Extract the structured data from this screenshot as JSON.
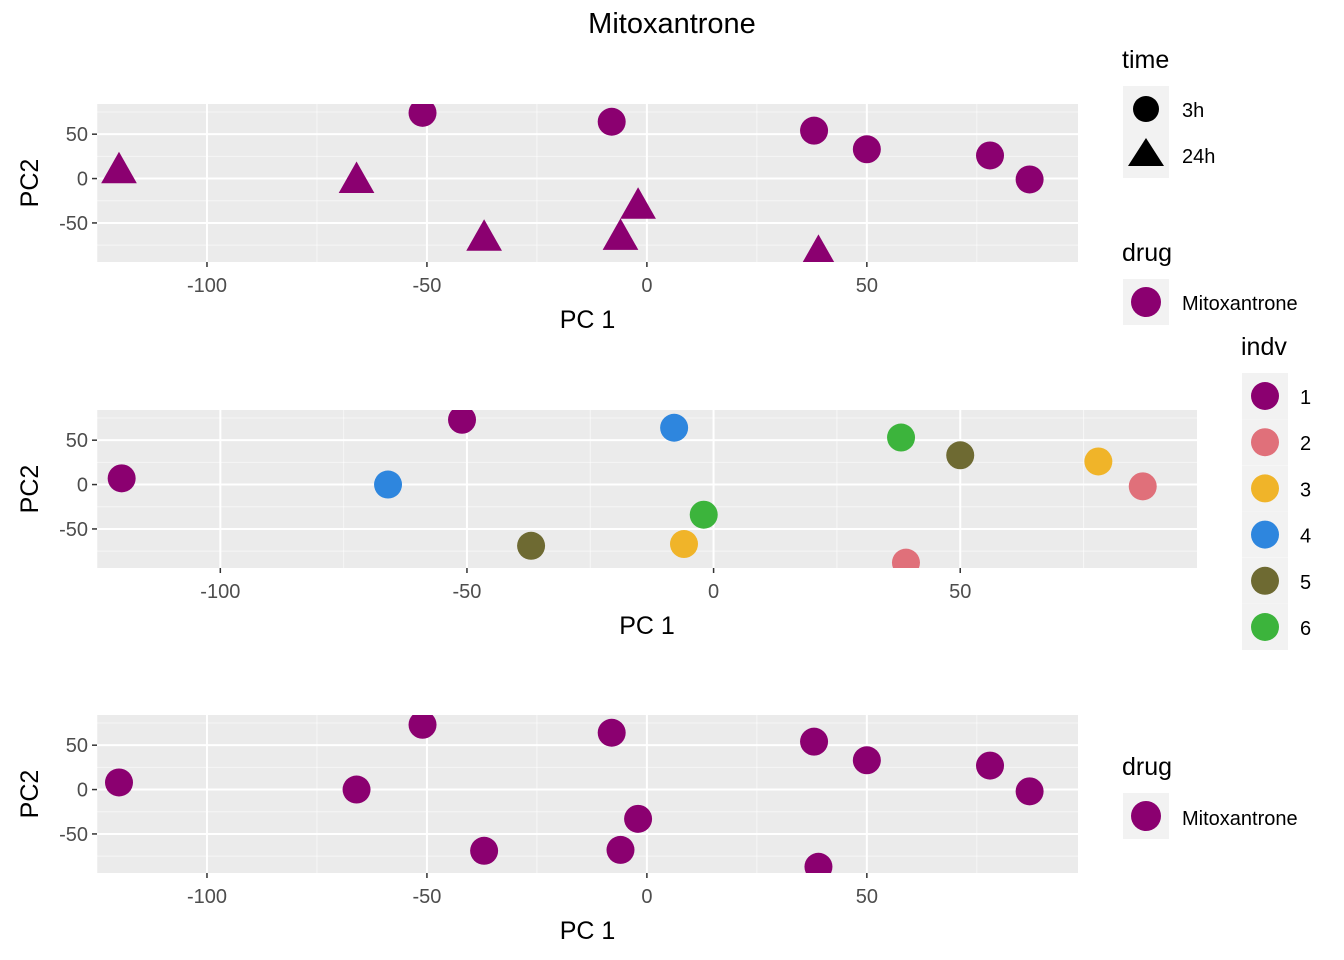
{
  "title": "Mitoxantrone",
  "colors": {
    "panel_bg": "#EBEBEB",
    "grid_major": "#FFFFFF",
    "grid_minor": "#F5F5F5",
    "tick_text": "#4D4D4D",
    "mitoxantrone": "#8B0070",
    "indv": {
      "1": "#8B0070",
      "2": "#E0707A",
      "3": "#F0B429",
      "4": "#2E86DE",
      "5": "#6E6A32",
      "6": "#3CB43C"
    }
  },
  "legends": {
    "time": {
      "title": "time",
      "items": [
        {
          "label": "3h",
          "shape": "circle"
        },
        {
          "label": "24h",
          "shape": "triangle"
        }
      ]
    },
    "drug_top": {
      "title": "drug",
      "items": [
        {
          "label": "Mitoxantrone"
        }
      ]
    },
    "indv": {
      "title": "indv",
      "items": [
        {
          "label": "1"
        },
        {
          "label": "2"
        },
        {
          "label": "3"
        },
        {
          "label": "4"
        },
        {
          "label": "5"
        },
        {
          "label": "6"
        }
      ]
    },
    "drug_bottom": {
      "title": "drug",
      "items": [
        {
          "label": "Mitoxantrone"
        }
      ]
    }
  },
  "chart_data": [
    {
      "type": "scatter",
      "xlabel": "PC 1",
      "ylabel": "PC2",
      "xlim": [
        -125,
        98
      ],
      "ylim": [
        -94,
        84
      ],
      "xticks": [
        -100,
        -50,
        0,
        50
      ],
      "yticks": [
        -50,
        0,
        50
      ],
      "grid": true,
      "legend": "right",
      "color_by": "drug",
      "shape_by": "time",
      "points": [
        {
          "x": -51,
          "y": 74,
          "time": "3h",
          "drug": "Mitoxantrone",
          "indv": "1"
        },
        {
          "x": -120,
          "y": 11,
          "time": "24h",
          "drug": "Mitoxantrone",
          "indv": "1"
        },
        {
          "x": 87,
          "y": -1,
          "time": "3h",
          "drug": "Mitoxantrone",
          "indv": "2"
        },
        {
          "x": 39,
          "y": -82,
          "time": "24h",
          "drug": "Mitoxantrone",
          "indv": "2"
        },
        {
          "x": 78,
          "y": 26,
          "time": "3h",
          "drug": "Mitoxantrone",
          "indv": "3"
        },
        {
          "x": -6,
          "y": -64,
          "time": "24h",
          "drug": "Mitoxantrone",
          "indv": "3"
        },
        {
          "x": -8,
          "y": 64,
          "time": "3h",
          "drug": "Mitoxantrone",
          "indv": "4"
        },
        {
          "x": -66,
          "y": 0,
          "time": "24h",
          "drug": "Mitoxantrone",
          "indv": "4"
        },
        {
          "x": 50,
          "y": 33,
          "time": "3h",
          "drug": "Mitoxantrone",
          "indv": "5"
        },
        {
          "x": -37,
          "y": -65,
          "time": "24h",
          "drug": "Mitoxantrone",
          "indv": "5"
        },
        {
          "x": 38,
          "y": 54,
          "time": "3h",
          "drug": "Mitoxantrone",
          "indv": "6"
        },
        {
          "x": -2,
          "y": -29,
          "time": "24h",
          "drug": "Mitoxantrone",
          "indv": "6"
        }
      ]
    },
    {
      "type": "scatter",
      "xlabel": "PC 1",
      "ylabel": "PC2",
      "xlim": [
        -125,
        98
      ],
      "ylim": [
        -94,
        84
      ],
      "xticks": [
        -100,
        -50,
        0,
        50
      ],
      "yticks": [
        -50,
        0,
        50
      ],
      "grid": true,
      "legend": "right",
      "color_by": "indv",
      "points": [
        {
          "x": -51,
          "y": 73,
          "indv": "1"
        },
        {
          "x": -120,
          "y": 7,
          "indv": "1"
        },
        {
          "x": 87,
          "y": -2,
          "indv": "2"
        },
        {
          "x": 39,
          "y": -88,
          "indv": "2"
        },
        {
          "x": 78,
          "y": 26,
          "indv": "3"
        },
        {
          "x": -6,
          "y": -67,
          "indv": "3"
        },
        {
          "x": -8,
          "y": 64,
          "indv": "4"
        },
        {
          "x": -66,
          "y": 0,
          "indv": "4"
        },
        {
          "x": 50,
          "y": 33,
          "indv": "5"
        },
        {
          "x": -37,
          "y": -69,
          "indv": "5"
        },
        {
          "x": 38,
          "y": 53,
          "indv": "6"
        },
        {
          "x": -2,
          "y": -34,
          "indv": "6"
        }
      ]
    },
    {
      "type": "scatter",
      "xlabel": "PC 1",
      "ylabel": "PC2",
      "xlim": [
        -125,
        98
      ],
      "ylim": [
        -94,
        84
      ],
      "xticks": [
        -100,
        -50,
        0,
        50
      ],
      "yticks": [
        -50,
        0,
        50
      ],
      "grid": true,
      "legend": "right",
      "color_by": "drug",
      "points": [
        {
          "x": -51,
          "y": 73,
          "drug": "Mitoxantrone"
        },
        {
          "x": -120,
          "y": 8,
          "drug": "Mitoxantrone"
        },
        {
          "x": 87,
          "y": -2,
          "drug": "Mitoxantrone"
        },
        {
          "x": 39,
          "y": -87,
          "drug": "Mitoxantrone"
        },
        {
          "x": 78,
          "y": 27,
          "drug": "Mitoxantrone"
        },
        {
          "x": -6,
          "y": -68,
          "drug": "Mitoxantrone"
        },
        {
          "x": -8,
          "y": 64,
          "drug": "Mitoxantrone"
        },
        {
          "x": -66,
          "y": 0,
          "drug": "Mitoxantrone"
        },
        {
          "x": 50,
          "y": 33,
          "drug": "Mitoxantrone"
        },
        {
          "x": -37,
          "y": -69,
          "drug": "Mitoxantrone"
        },
        {
          "x": 38,
          "y": 54,
          "drug": "Mitoxantrone"
        },
        {
          "x": -2,
          "y": -33,
          "drug": "Mitoxantrone"
        }
      ]
    }
  ]
}
